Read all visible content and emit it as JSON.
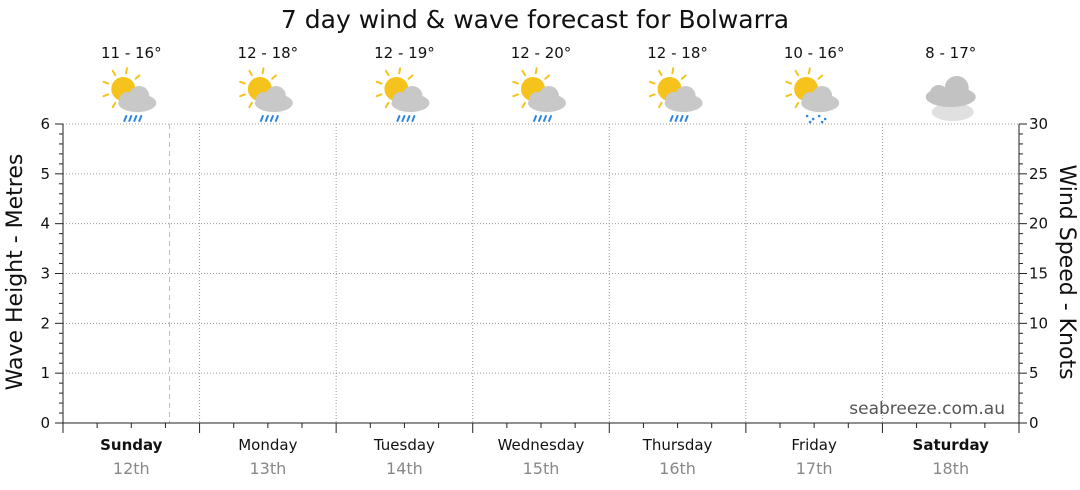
{
  "chart_data": {
    "type": "line",
    "title": "7 day wind & wave forecast for Bolwarra",
    "ylabel_left": "Wave Height - Metres",
    "ylabel_right": "Wind Speed - Knots",
    "ylim_left": [
      0,
      6
    ],
    "ylim_right": [
      0,
      30
    ],
    "yticks_left": [
      "0",
      "1",
      "2",
      "3",
      "4",
      "5",
      "6"
    ],
    "yticks_right": [
      "0",
      "5",
      "10",
      "15",
      "20",
      "25",
      "30"
    ],
    "grid": true,
    "series": [],
    "current_time_marker": {
      "day_index": 0,
      "fraction_of_day": 0.78
    },
    "days": [
      {
        "day": "Sunday",
        "date": "12th",
        "temp": "11 - 16°",
        "icon": "sun-cloud-rain-icon",
        "bold": true
      },
      {
        "day": "Monday",
        "date": "13th",
        "temp": "12 - 18°",
        "icon": "sun-cloud-rain-icon",
        "bold": false
      },
      {
        "day": "Tuesday",
        "date": "14th",
        "temp": "12 - 19°",
        "icon": "sun-cloud-rain-icon",
        "bold": false
      },
      {
        "day": "Wednesday",
        "date": "15th",
        "temp": "12 - 20°",
        "icon": "sun-cloud-rain-icon",
        "bold": false
      },
      {
        "day": "Thursday",
        "date": "16th",
        "temp": "12 - 18°",
        "icon": "sun-cloud-rain-icon",
        "bold": false
      },
      {
        "day": "Friday",
        "date": "17th",
        "temp": "10 - 16°",
        "icon": "sun-cloud-drizzle-icon",
        "bold": false
      },
      {
        "day": "Saturday",
        "date": "18th",
        "temp": "8 - 17°",
        "icon": "cloudy-icon",
        "bold": true
      }
    ],
    "watermark": "seabreeze.com.au"
  },
  "colors": {
    "grid": "#999999",
    "axis": "#222222",
    "now_line": "#f3a3a3",
    "sun": "#f6c21c",
    "cloud": "#c8c8c8",
    "rain": "#2f86e0"
  }
}
